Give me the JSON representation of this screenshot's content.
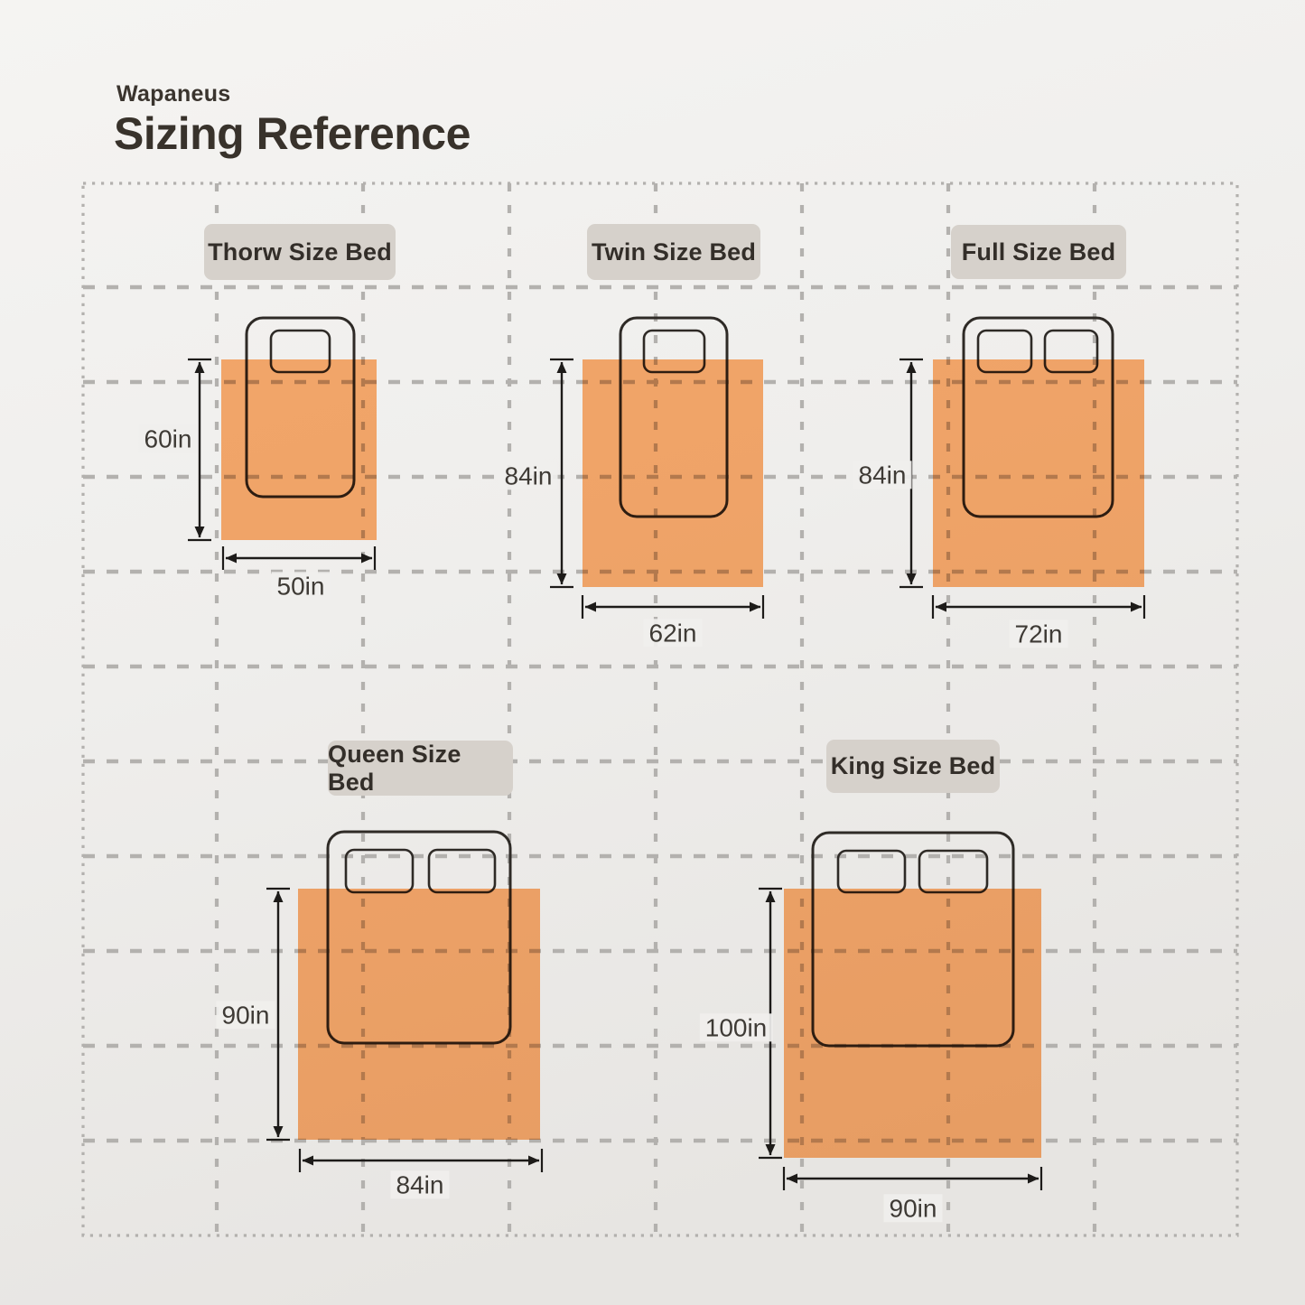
{
  "header": {
    "brand": "Wapaneus",
    "title": "Sizing Reference"
  },
  "beds": [
    {
      "id": "throw",
      "label": "Thorw Size Bed",
      "blanket_height": "60in",
      "blanket_width": "50in",
      "pillows": 1
    },
    {
      "id": "twin",
      "label": "Twin Size Bed",
      "blanket_height": "84in",
      "blanket_width": "62in",
      "pillows": 1
    },
    {
      "id": "full",
      "label": "Full Size Bed",
      "blanket_height": "84in",
      "blanket_width": "72in",
      "pillows": 2
    },
    {
      "id": "queen",
      "label": "Queen Size Bed",
      "blanket_height": "90in",
      "blanket_width": "84in",
      "pillows": 2
    },
    {
      "id": "king",
      "label": "King Size Bed",
      "blanket_height": "100in",
      "blanket_width": "90in",
      "pillows": 2
    }
  ],
  "colors": {
    "background_top": "#f5f4f2",
    "background_bottom": "#e7e5e2",
    "blanket": "#ffaf70",
    "label_box": "#d6d1cb",
    "grid": "#b3b1ae",
    "bed_outline": "#2e2a26",
    "dimension": "#1d1b19",
    "title_text": "#38322b"
  }
}
